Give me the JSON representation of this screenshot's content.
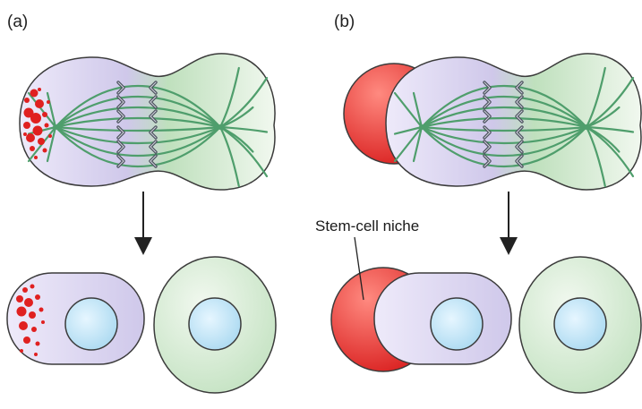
{
  "panels": [
    {
      "id": "a",
      "label": "(a)"
    },
    {
      "id": "b",
      "label": "(b)"
    }
  ],
  "callout": {
    "text": "Stem-cell niche"
  },
  "colors": {
    "cell_outline": "#3b3b3b",
    "lavender_light": "#eeeafa",
    "lavender": "#cfc8ea",
    "green_light": "#f1f8ef",
    "green": "#bfe0bd",
    "spindle": "#4f9e6c",
    "determinants": "#e02020",
    "niche_light": "#ff8a80",
    "niche": "#d81c1c",
    "nucleus_light": "#e6f6ff",
    "nucleus": "#a8d8f0",
    "chromosome": "#4a4f5c",
    "arrow": "#222222"
  }
}
